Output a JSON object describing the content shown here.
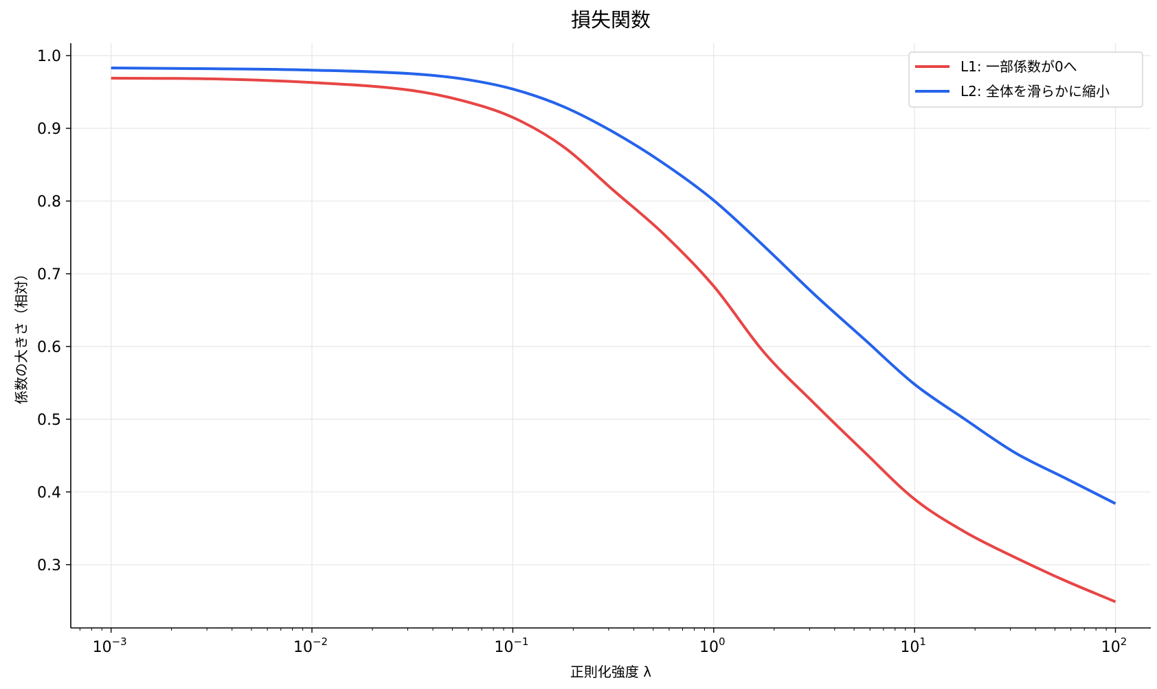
{
  "chart_data": {
    "type": "line",
    "title": "損失関数",
    "xlabel": "正則化強度 λ",
    "ylabel": "係数の大きさ（相対）",
    "x_scale": "log",
    "xlim": [
      0.00063,
      150
    ],
    "ylim": [
      0.213,
      1.017
    ],
    "grid": true,
    "legend_position": "top-right",
    "x_ticks": [
      {
        "value": 0.001,
        "base": "10",
        "exp": "−3"
      },
      {
        "value": 0.01,
        "base": "10",
        "exp": "−2"
      },
      {
        "value": 0.1,
        "base": "10",
        "exp": "−1"
      },
      {
        "value": 1,
        "base": "10",
        "exp": "0"
      },
      {
        "value": 10,
        "base": "10",
        "exp": "1"
      },
      {
        "value": 100,
        "base": "10",
        "exp": "2"
      }
    ],
    "y_ticks": [
      {
        "value": 0.3,
        "label": "0.3"
      },
      {
        "value": 0.4,
        "label": "0.4"
      },
      {
        "value": 0.5,
        "label": "0.5"
      },
      {
        "value": 0.6,
        "label": "0.6"
      },
      {
        "value": 0.7,
        "label": "0.7"
      },
      {
        "value": 0.8,
        "label": "0.8"
      },
      {
        "value": 0.9,
        "label": "0.9"
      },
      {
        "value": 1.0,
        "label": "1.0"
      }
    ],
    "x": [
      0.001,
      0.00316,
      0.01,
      0.0316,
      0.0562,
      0.1,
      0.178,
      0.316,
      0.562,
      1,
      1.78,
      3.16,
      5.62,
      10,
      17.8,
      31.6,
      56.2,
      100
    ],
    "series": [
      {
        "name": "L1: 一部係数が0へ",
        "color": "#e84545",
        "values": [
          0.969,
          0.968,
          0.963,
          0.952,
          0.938,
          0.915,
          0.875,
          0.815,
          0.755,
          0.683,
          0.592,
          0.522,
          0.455,
          0.39,
          0.345,
          0.31,
          0.278,
          0.249
        ]
      },
      {
        "name": "L2: 全体を滑らかに縮小",
        "color": "#2563eb",
        "values": [
          0.983,
          0.982,
          0.98,
          0.975,
          0.968,
          0.954,
          0.93,
          0.895,
          0.852,
          0.801,
          0.738,
          0.672,
          0.61,
          0.548,
          0.5,
          0.454,
          0.419,
          0.384
        ]
      }
    ]
  }
}
